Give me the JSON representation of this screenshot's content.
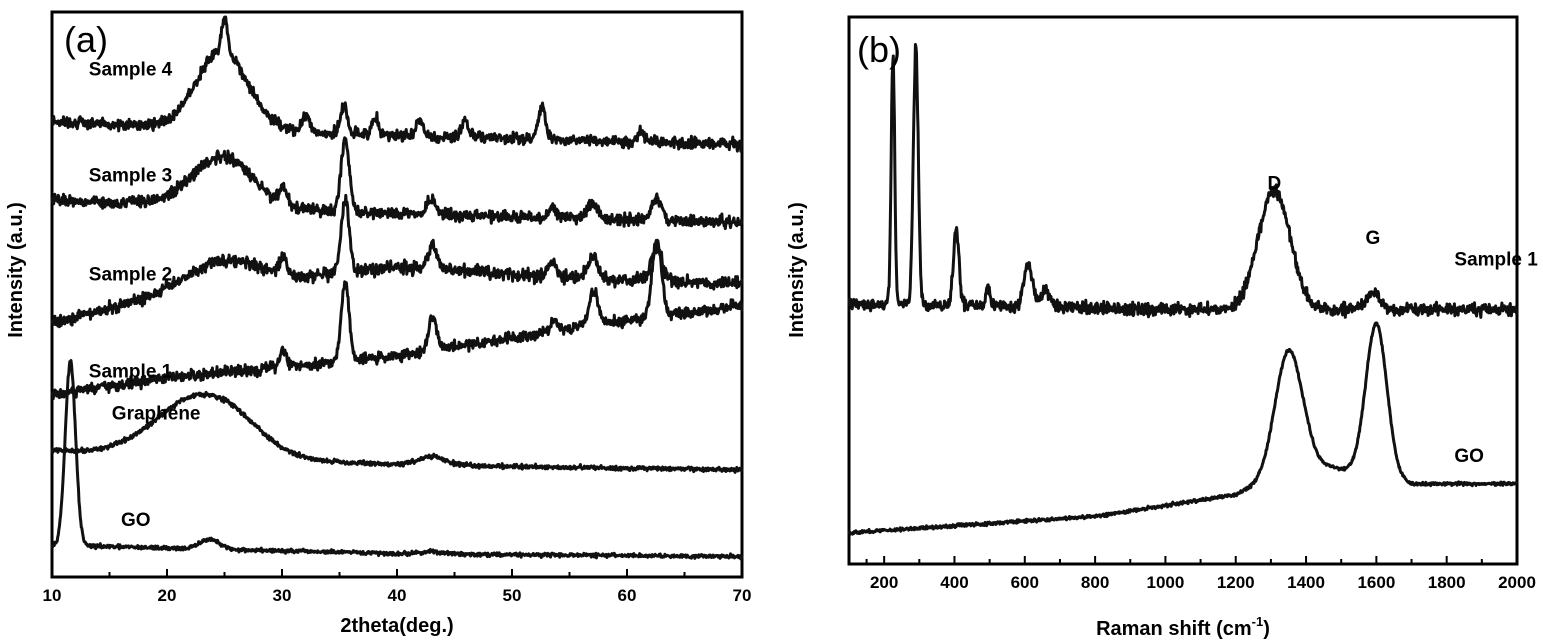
{
  "chart_data": [
    {
      "type": "line",
      "panel_label": "(a)",
      "title": "",
      "xlabel": "2theta(deg.)",
      "ylabel": "Intensity (a.u.)",
      "xlim": [
        10,
        70
      ],
      "xticks": [
        10,
        20,
        30,
        40,
        50,
        60,
        70
      ],
      "ylim": [
        0,
        100
      ],
      "y_tick_labels": false,
      "legend": "none; series labeled inline above each curve",
      "series": [
        {
          "name": "GO",
          "baseline": [
            [
              10,
              3
            ],
            [
              40,
              1.5
            ],
            [
              70,
              1
            ]
          ],
          "peaks": [
            [
              11.6,
              33,
              0.45
            ],
            [
              23.7,
              1.8,
              0.8
            ],
            [
              43,
              0.4,
              1
            ]
          ],
          "noise": 0.35
        },
        {
          "name": "Graphene",
          "baseline": [
            [
              10,
              20
            ],
            [
              40,
              17.5
            ],
            [
              70,
              16.5
            ]
          ],
          "peaks": [
            [
              23,
              11,
              3.8
            ],
            [
              43,
              1.5,
              1.2
            ],
            [
              26.5,
              1,
              2
            ]
          ],
          "noise": 0.4
        },
        {
          "name": "Sample 1",
          "baseline": [
            [
              10,
              30
            ],
            [
              20,
              33
            ],
            [
              40,
              37
            ],
            [
              55,
              42
            ],
            [
              70,
              46
            ]
          ],
          "peaks": [
            [
              30.1,
              3,
              0.3
            ],
            [
              35.5,
              14,
              0.35
            ],
            [
              43.1,
              6,
              0.35
            ],
            [
              53.7,
              2,
              0.3
            ],
            [
              57.1,
              6,
              0.4
            ],
            [
              62.6,
              14,
              0.4
            ]
          ],
          "noise": 1.0
        },
        {
          "name": "Sample 2",
          "baseline": [
            [
              10,
              43
            ],
            [
              20,
              48
            ],
            [
              40,
              53
            ],
            [
              55,
              51
            ],
            [
              70,
              50
            ]
          ],
          "peaks": [
            [
              24.8,
              5,
              3
            ],
            [
              30.1,
              3,
              0.35
            ],
            [
              35.5,
              13,
              0.35
            ],
            [
              43.1,
              4,
              0.4
            ],
            [
              53.5,
              3,
              0.3
            ],
            [
              57,
              4,
              0.45
            ],
            [
              62.6,
              6,
              0.45
            ]
          ],
          "noise": 1.1
        },
        {
          "name": "Sample 3",
          "baseline": [
            [
              10,
              65
            ],
            [
              40,
              62.5
            ],
            [
              70,
              61
            ]
          ],
          "peaks": [
            [
              24.8,
              9,
              2.6
            ],
            [
              30.1,
              3,
              0.35
            ],
            [
              35.5,
              13,
              0.35
            ],
            [
              43,
              3,
              0.4
            ],
            [
              53.6,
              2,
              0.3
            ],
            [
              57,
              3,
              0.4
            ],
            [
              62.6,
              4,
              0.4
            ]
          ],
          "noise": 1.0
        },
        {
          "name": "Sample 4",
          "baseline": [
            [
              10,
              79
            ],
            [
              40,
              76.5
            ],
            [
              70,
              75
            ]
          ],
          "peaks": [
            [
              24.8,
              14,
              2.2
            ],
            [
              25,
              6,
              0.25
            ],
            [
              32.1,
              3,
              0.3
            ],
            [
              35.4,
              5,
              0.3
            ],
            [
              38.1,
              3,
              0.3
            ],
            [
              42,
              3,
              0.3
            ],
            [
              45.9,
              3,
              0.3
            ],
            [
              52.6,
              6,
              0.3
            ],
            [
              61.2,
              2,
              0.3
            ]
          ],
          "noise": 1.0
        }
      ]
    },
    {
      "type": "line",
      "panel_label": "(b)",
      "title": "",
      "xlabel_text": "Raman shift (cm",
      "xlabel_sup": "-1",
      "xlabel_end": ")",
      "ylabel": "Intensity (a.u.)",
      "xlim": [
        100,
        2000
      ],
      "xticks": [
        200,
        400,
        600,
        800,
        1000,
        1200,
        1400,
        1600,
        1800,
        2000
      ],
      "ylim": [
        0,
        100
      ],
      "y_tick_labels": false,
      "legend": "none; series labeled inline to the right of each curve",
      "annotations": [
        {
          "text": "D",
          "x": 1310,
          "y": 68
        },
        {
          "text": "G",
          "x": 1590,
          "y": 58
        }
      ],
      "series": [
        {
          "name": "GO",
          "baseline": [
            [
              100,
              5
            ],
            [
              800,
              8
            ],
            [
              1200,
              12
            ],
            [
              1400,
              18
            ],
            [
              1700,
              14
            ],
            [
              2000,
              14
            ]
          ],
          "peaks": [
            [
              1350,
              22,
              38
            ],
            [
              1600,
              28,
              30
            ]
          ],
          "noise": 0.3
        },
        {
          "name": "Sample 1",
          "baseline": [
            [
              100,
              47
            ],
            [
              1000,
              46
            ],
            [
              2000,
              46
            ]
          ],
          "peaks": [
            [
              225,
              46,
              5
            ],
            [
              290,
              47,
              7
            ],
            [
              405,
              14,
              8
            ],
            [
              495,
              4,
              5
            ],
            [
              610,
              8,
              12
            ],
            [
              660,
              3,
              12
            ],
            [
              1310,
              22,
              45
            ],
            [
              1590,
              3,
              20
            ]
          ],
          "noise": 1.1
        }
      ]
    }
  ]
}
